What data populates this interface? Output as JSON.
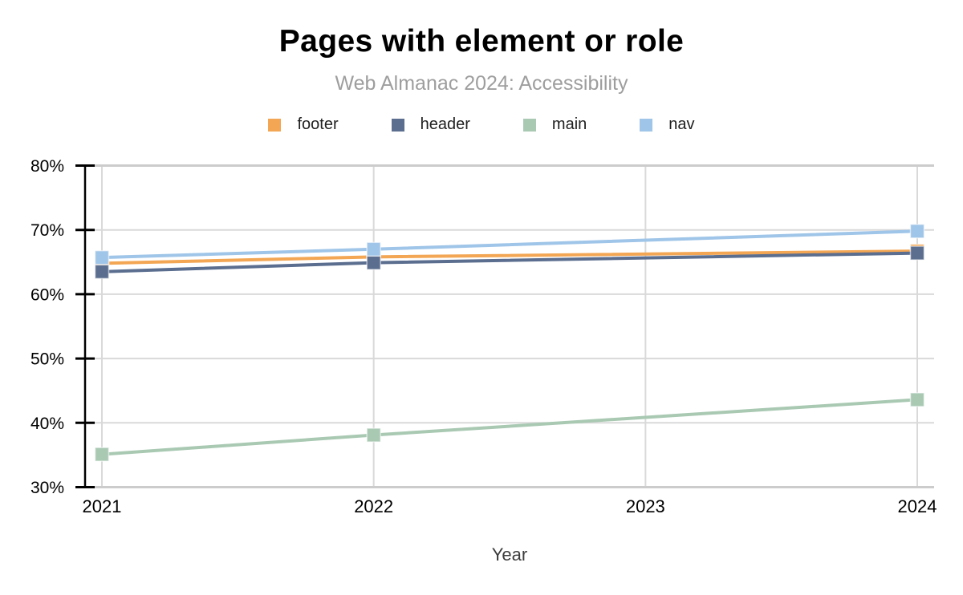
{
  "title": "Pages with element or role",
  "subtitle": "Web Almanac 2024: Accessibility",
  "colors": {
    "grid": "#d9d9d9",
    "frame": "#cccccc",
    "axis": "#000000",
    "tick_label": "#000000",
    "axis_title": "#3c3c3c",
    "subtitle_text": "#9e9e9e"
  },
  "chart_data": {
    "type": "line",
    "x": [
      2021,
      2022,
      2024
    ],
    "x_axis": {
      "label": "Year",
      "ticks": [
        "2021",
        "2022",
        "2023",
        "2024"
      ],
      "tick_values": [
        2021,
        2022,
        2023,
        2024
      ],
      "range": [
        2021,
        2024
      ]
    },
    "y_axis": {
      "ticks": [
        "80%",
        "70%",
        "60%",
        "50%",
        "40%",
        "30%"
      ],
      "tick_values": [
        80,
        70,
        60,
        50,
        40,
        30
      ],
      "range": [
        30,
        80
      ],
      "unit": "%"
    },
    "series": [
      {
        "name": "footer",
        "color": "#f3a653",
        "values": [
          64.8,
          65.8,
          66.7
        ]
      },
      {
        "name": "header",
        "color": "#5b6e8f",
        "values": [
          63.5,
          64.9,
          66.4
        ]
      },
      {
        "name": "main",
        "color": "#a9c9b3",
        "values": [
          35.1,
          38.1,
          43.6
        ]
      },
      {
        "name": "nav",
        "color": "#9fc5e8",
        "values": [
          65.7,
          67.0,
          69.8
        ]
      }
    ],
    "legend_position": "top",
    "grid": true,
    "marker": "square"
  }
}
